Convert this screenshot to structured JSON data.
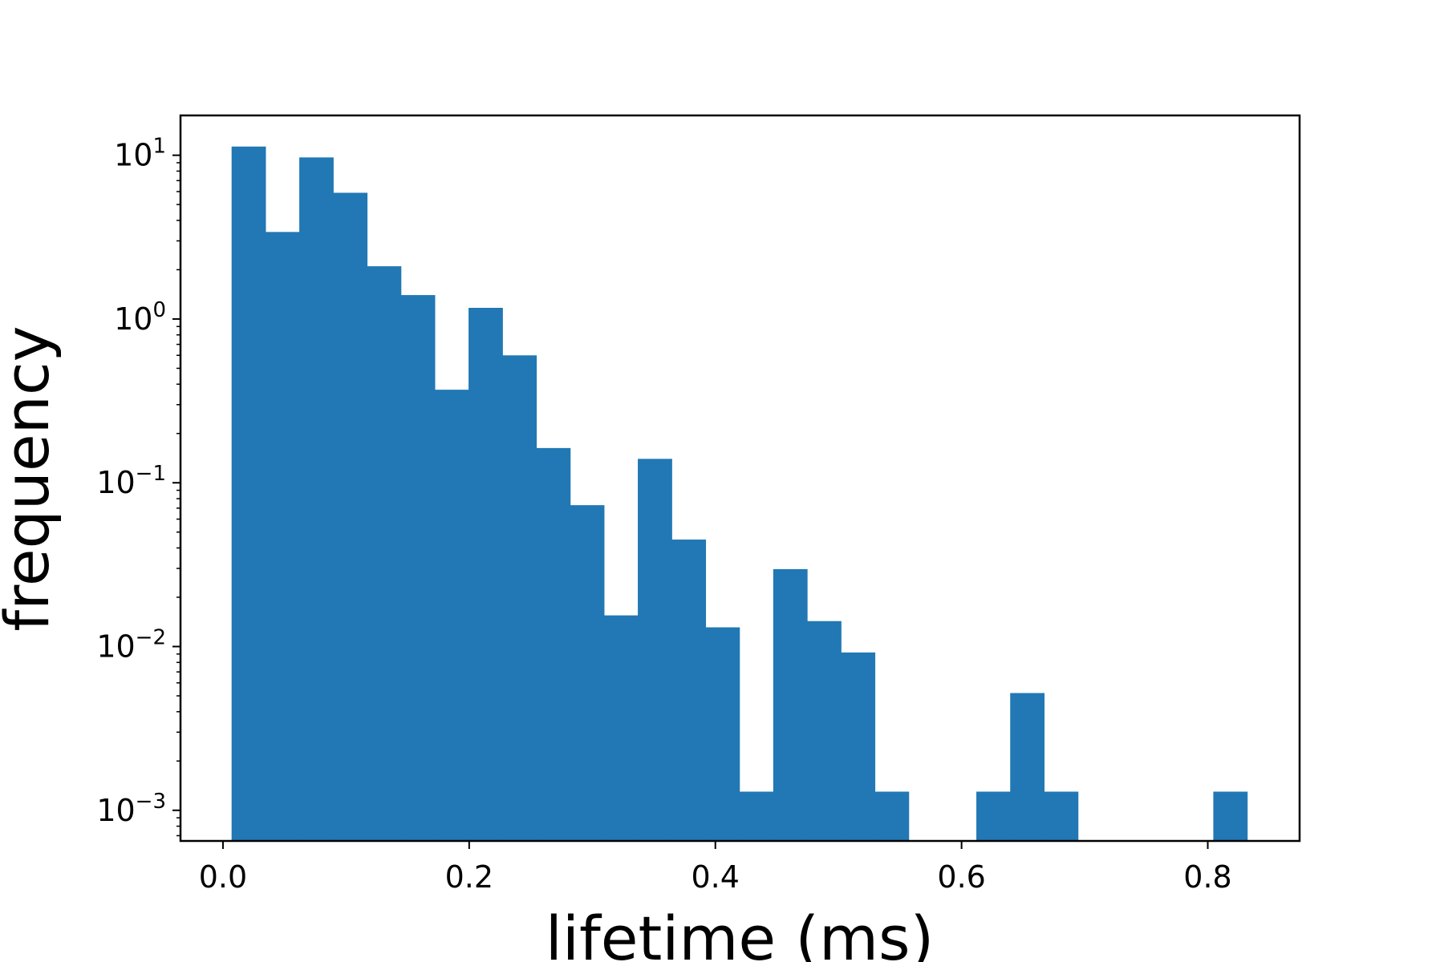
{
  "chart_data": {
    "type": "bar",
    "xlabel": "lifetime (ms)",
    "ylabel": "frequency",
    "xlim": [
      -0.0345,
      0.8746
    ],
    "ylim": [
      0.00065,
      17.5
    ],
    "yscale": "log",
    "grid": false,
    "bar_color": "#2178b4",
    "bin_edges": [
      0.007,
      0.0345,
      0.062,
      0.0895,
      0.117,
      0.1445,
      0.172,
      0.1995,
      0.227,
      0.2545,
      0.282,
      0.3095,
      0.337,
      0.3645,
      0.392,
      0.4195,
      0.447,
      0.4745,
      0.502,
      0.5295,
      0.557,
      0.5845,
      0.612,
      0.6395,
      0.667,
      0.6945,
      0.722,
      0.7495,
      0.777,
      0.8045,
      0.832
    ],
    "values": [
      11.3,
      3.4,
      9.7,
      5.9,
      2.1,
      1.4,
      0.37,
      1.17,
      0.6,
      0.163,
      0.073,
      0.0155,
      0.14,
      0.045,
      0.0131,
      0.0013,
      0.0297,
      0.0143,
      0.0092,
      0.0013,
      null,
      null,
      0.0013,
      0.0052,
      0.0013,
      null,
      null,
      null,
      null,
      0.0013
    ],
    "x_ticks": [
      {
        "value": 0.0,
        "label": "0.0"
      },
      {
        "value": 0.2,
        "label": "0.2"
      },
      {
        "value": 0.4,
        "label": "0.4"
      },
      {
        "value": 0.6,
        "label": "0.6"
      },
      {
        "value": 0.8,
        "label": "0.8"
      }
    ],
    "y_ticks": [
      {
        "value": 10,
        "base": "10",
        "exp": "1"
      },
      {
        "value": 1,
        "base": "10",
        "exp": "0"
      },
      {
        "value": 0.1,
        "base": "10",
        "exp": "−1"
      },
      {
        "value": 0.01,
        "base": "10",
        "exp": "−2"
      },
      {
        "value": 0.001,
        "base": "10",
        "exp": "−3"
      }
    ]
  }
}
